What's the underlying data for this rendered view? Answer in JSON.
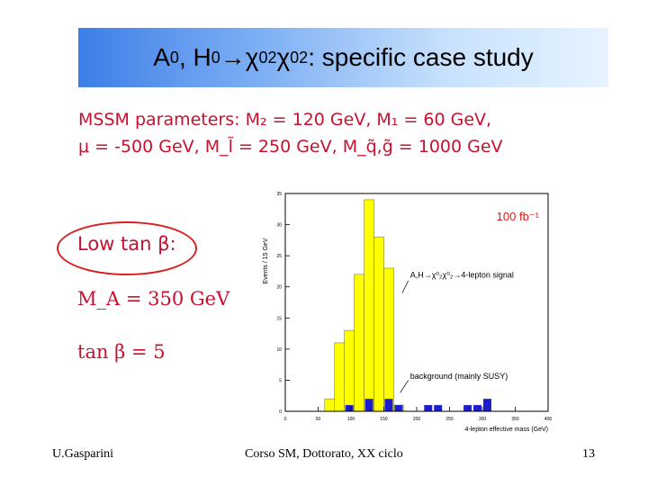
{
  "slide": {
    "title_prefix_a": "A",
    "title_sub_a": "0",
    "title_sep": ", H",
    "title_sub_h": "0",
    "title_arrow": " →χ",
    "title_sub_chi1": "02",
    "title_chi2": " χ",
    "title_sub_chi2": "02",
    "title_suffix": ": specific case study",
    "params_label": "MSSM parameters:",
    "params_line1": "M₂ = 120 GeV, M₁ = 60 GeV,",
    "params_line2": "μ = -500 GeV, M_l̃ = 250 GeV, M_q̃,g̃ = 1000 GeV",
    "low_tan": "Low tan β:",
    "ma_value": "M_A = 350 GeV",
    "tanb_value": "tan β = 5"
  },
  "footer": {
    "author": "U.Gasparini",
    "course": "Corso SM, Dottorato, XX ciclo",
    "page": "13"
  },
  "chart_data": {
    "type": "bar",
    "ylabel": "Events / 15 GeV",
    "xlabel": "4-lepton effective mass (GeV)",
    "xlim": [
      0,
      400
    ],
    "ylim": [
      0,
      35
    ],
    "xticks": [
      "0",
      "50",
      "100",
      "150",
      "200",
      "250",
      "300",
      "350",
      "400"
    ],
    "yticks": [
      "0",
      "5",
      "10",
      "15",
      "20",
      "25",
      "30",
      "35"
    ],
    "lumi_label": "100 fb⁻¹",
    "signal_label": "A,H→χ⁰₂χ⁰₂→4-lepton signal",
    "background_label": "background (mainly SUSY)",
    "bin_edges": [
      60,
      75,
      90,
      105,
      120,
      135,
      150,
      165,
      180
    ],
    "series": [
      {
        "name": "signal",
        "color": "#ffff00",
        "values": [
          2,
          11,
          13,
          22,
          34,
          28,
          23,
          1
        ]
      },
      {
        "name": "background",
        "color": "#1d1dd0",
        "bins": [
          [
            90,
            105,
            1
          ],
          [
            120,
            135,
            2
          ],
          [
            150,
            165,
            2
          ],
          [
            165,
            180,
            1
          ],
          [
            210,
            225,
            1
          ],
          [
            225,
            240,
            1
          ],
          [
            270,
            285,
            1
          ],
          [
            285,
            300,
            1
          ],
          [
            300,
            315,
            2
          ]
        ]
      }
    ]
  }
}
